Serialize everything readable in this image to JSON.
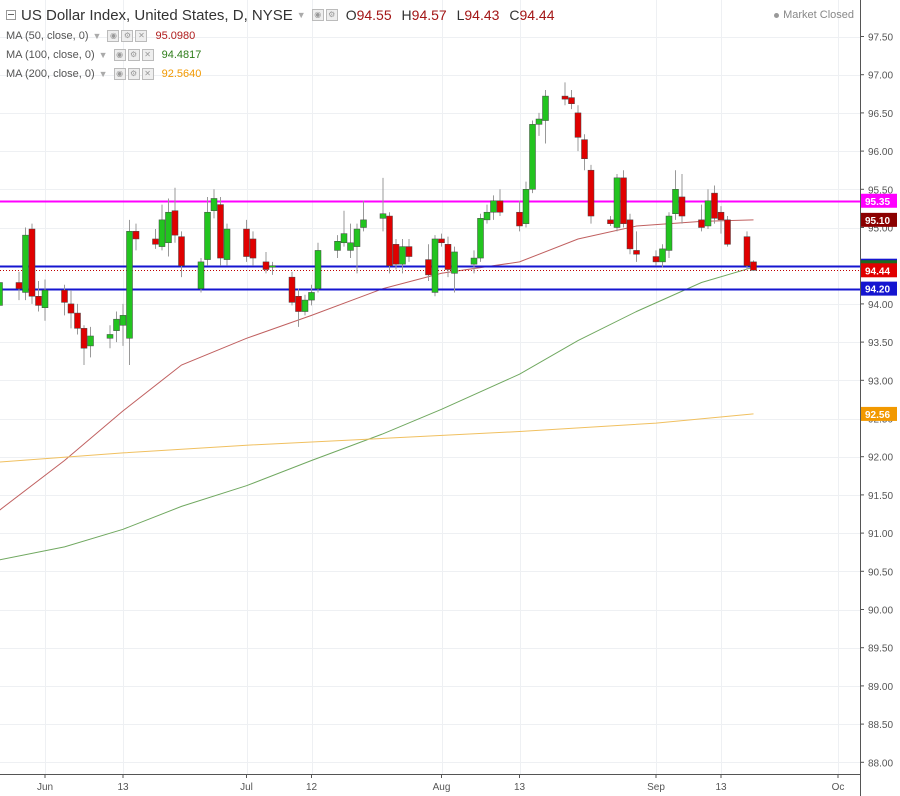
{
  "header": {
    "title": "US Dollar Index, United States, D, NYSE",
    "ohlc": [
      {
        "k": "O",
        "v": "94.55"
      },
      {
        "k": "H",
        "v": "94.57"
      },
      {
        "k": "L",
        "v": "94.43"
      },
      {
        "k": "C",
        "v": "94.44"
      }
    ],
    "status": "Market Closed"
  },
  "indicators": [
    {
      "label": "MA (50, close, 0)",
      "value": "95.0980",
      "color": "#b01c1c"
    },
    {
      "label": "MA (100, close, 0)",
      "value": "94.4817",
      "color": "#2e7d1a"
    },
    {
      "label": "MA (200, close, 0)",
      "value": "92.5640",
      "color": "#f29900"
    }
  ],
  "colors": {
    "up": "#22c41f",
    "down": "#e00000",
    "wick": "#999999",
    "hline_magenta": "#ff00ff",
    "hline_blue": "#1515d0",
    "ma50": "#c06060",
    "ma100": "#70a860",
    "ma200": "#f0c060"
  },
  "chart_data": {
    "type": "candlestick",
    "title": "US Dollar Index, United States, D, NYSE",
    "ylim": [
      87.9,
      97.7
    ],
    "y_ticks": [
      "97.50",
      "97.00",
      "96.50",
      "96.00",
      "95.50",
      "95.00",
      "94.50",
      "94.00",
      "93.50",
      "93.00",
      "92.50",
      "92.00",
      "91.50",
      "91.00",
      "90.50",
      "90.00",
      "89.50",
      "89.00",
      "88.50",
      "88.00"
    ],
    "x_ticks": [
      "Jun",
      "13",
      "Jul",
      "12",
      "Aug",
      "13",
      "Sep",
      "13",
      "Oc"
    ],
    "x_tick_dates": [
      "2018-06-01",
      "2018-06-13",
      "2018-07-02",
      "2018-07-12",
      "2018-08-01",
      "2018-08-13",
      "2018-09-03",
      "2018-09-13",
      "2018-10-01"
    ],
    "candles": [
      {
        "d": "2018-05-25",
        "o": 93.98,
        "h": 94.35,
        "l": 93.85,
        "c": 94.28
      },
      {
        "d": "2018-05-28",
        "o": 94.28,
        "h": 94.42,
        "l": 94.05,
        "c": 94.2
      },
      {
        "d": "2018-05-29",
        "o": 94.15,
        "h": 95.0,
        "l": 94.05,
        "c": 94.9
      },
      {
        "d": "2018-05-30",
        "o": 94.98,
        "h": 95.05,
        "l": 94.0,
        "c": 94.1
      },
      {
        "d": "2018-05-31",
        "o": 94.1,
        "h": 94.3,
        "l": 93.9,
        "c": 93.98
      },
      {
        "d": "2018-06-01",
        "o": 93.95,
        "h": 94.32,
        "l": 93.78,
        "c": 94.18
      },
      {
        "d": "2018-06-04",
        "o": 94.18,
        "h": 94.25,
        "l": 93.85,
        "c": 94.02
      },
      {
        "d": "2018-06-05",
        "o": 94.0,
        "h": 94.18,
        "l": 93.68,
        "c": 93.88
      },
      {
        "d": "2018-06-06",
        "o": 93.88,
        "h": 94.0,
        "l": 93.6,
        "c": 93.68
      },
      {
        "d": "2018-06-07",
        "o": 93.68,
        "h": 93.72,
        "l": 93.2,
        "c": 93.42
      },
      {
        "d": "2018-06-08",
        "o": 93.45,
        "h": 93.7,
        "l": 93.3,
        "c": 93.58
      },
      {
        "d": "2018-06-11",
        "o": 93.55,
        "h": 93.72,
        "l": 93.42,
        "c": 93.6
      },
      {
        "d": "2018-06-12",
        "o": 93.65,
        "h": 93.9,
        "l": 93.5,
        "c": 93.8
      },
      {
        "d": "2018-06-13",
        "o": 93.72,
        "h": 94.0,
        "l": 93.45,
        "c": 93.85
      },
      {
        "d": "2018-06-14",
        "o": 93.55,
        "h": 95.1,
        "l": 93.2,
        "c": 94.95
      },
      {
        "d": "2018-06-15",
        "o": 94.95,
        "h": 95.05,
        "l": 94.7,
        "c": 94.85
      },
      {
        "d": "2018-06-18",
        "o": 94.85,
        "h": 94.98,
        "l": 94.72,
        "c": 94.78
      },
      {
        "d": "2018-06-19",
        "o": 94.75,
        "h": 95.3,
        "l": 94.7,
        "c": 95.1
      },
      {
        "d": "2018-06-20",
        "o": 94.8,
        "h": 95.38,
        "l": 94.62,
        "c": 95.2
      },
      {
        "d": "2018-06-21",
        "o": 95.22,
        "h": 95.52,
        "l": 94.8,
        "c": 94.9
      },
      {
        "d": "2018-06-22",
        "o": 94.88,
        "h": 94.95,
        "l": 94.35,
        "c": 94.5
      },
      {
        "d": "2018-06-25",
        "o": 94.2,
        "h": 94.6,
        "l": 94.15,
        "c": 94.55
      },
      {
        "d": "2018-06-26",
        "o": 94.58,
        "h": 95.4,
        "l": 94.5,
        "c": 95.2
      },
      {
        "d": "2018-06-27",
        "o": 95.22,
        "h": 95.5,
        "l": 95.12,
        "c": 95.38
      },
      {
        "d": "2018-06-28",
        "o": 95.3,
        "h": 95.4,
        "l": 94.5,
        "c": 94.6
      },
      {
        "d": "2018-06-29",
        "o": 94.58,
        "h": 95.05,
        "l": 94.5,
        "c": 94.98
      },
      {
        "d": "2018-07-02",
        "o": 94.98,
        "h": 95.1,
        "l": 94.55,
        "c": 94.62
      },
      {
        "d": "2018-07-03",
        "o": 94.85,
        "h": 94.95,
        "l": 94.5,
        "c": 94.6
      },
      {
        "d": "2018-07-05",
        "o": 94.55,
        "h": 94.68,
        "l": 94.4,
        "c": 94.45
      },
      {
        "d": "2018-07-06",
        "o": 94.48,
        "h": 94.55,
        "l": 94.38,
        "c": 94.5
      },
      {
        "d": "2018-07-09",
        "o": 94.35,
        "h": 94.42,
        "l": 93.98,
        "c": 94.02
      },
      {
        "d": "2018-07-10",
        "o": 94.1,
        "h": 94.2,
        "l": 93.7,
        "c": 93.9
      },
      {
        "d": "2018-07-11",
        "o": 93.9,
        "h": 94.12,
        "l": 93.85,
        "c": 94.05
      },
      {
        "d": "2018-07-12",
        "o": 94.05,
        "h": 94.25,
        "l": 93.98,
        "c": 94.15
      },
      {
        "d": "2018-07-13",
        "o": 94.2,
        "h": 94.8,
        "l": 94.15,
        "c": 94.7
      },
      {
        "d": "2018-07-16",
        "o": 94.7,
        "h": 94.9,
        "l": 94.6,
        "c": 94.82
      },
      {
        "d": "2018-07-17",
        "o": 94.8,
        "h": 95.22,
        "l": 94.75,
        "c": 94.92
      },
      {
        "d": "2018-07-18",
        "o": 94.7,
        "h": 95.05,
        "l": 94.6,
        "c": 94.8
      },
      {
        "d": "2018-07-19",
        "o": 94.75,
        "h": 95.05,
        "l": 94.4,
        "c": 94.98
      },
      {
        "d": "2018-07-20",
        "o": 95.0,
        "h": 95.35,
        "l": 94.95,
        "c": 95.1
      },
      {
        "d": "2018-07-23",
        "o": 95.12,
        "h": 95.65,
        "l": 94.95,
        "c": 95.18
      },
      {
        "d": "2018-07-24",
        "o": 95.15,
        "h": 95.2,
        "l": 94.4,
        "c": 94.5
      },
      {
        "d": "2018-07-25",
        "o": 94.78,
        "h": 94.85,
        "l": 94.45,
        "c": 94.52
      },
      {
        "d": "2018-07-26",
        "o": 94.52,
        "h": 94.85,
        "l": 94.4,
        "c": 94.75
      },
      {
        "d": "2018-07-27",
        "o": 94.75,
        "h": 94.85,
        "l": 94.55,
        "c": 94.62
      },
      {
        "d": "2018-07-30",
        "o": 94.58,
        "h": 94.78,
        "l": 94.3,
        "c": 94.38
      },
      {
        "d": "2018-07-31",
        "o": 94.15,
        "h": 94.9,
        "l": 94.1,
        "c": 94.85
      },
      {
        "d": "2018-08-01",
        "o": 94.85,
        "h": 94.92,
        "l": 94.75,
        "c": 94.8
      },
      {
        "d": "2018-08-02",
        "o": 94.78,
        "h": 94.88,
        "l": 94.35,
        "c": 94.45
      },
      {
        "d": "2018-08-03",
        "o": 94.4,
        "h": 94.75,
        "l": 94.15,
        "c": 94.68
      },
      {
        "d": "2018-08-06",
        "o": 94.52,
        "h": 94.7,
        "l": 94.4,
        "c": 94.6
      },
      {
        "d": "2018-08-07",
        "o": 94.6,
        "h": 95.18,
        "l": 94.55,
        "c": 95.12
      },
      {
        "d": "2018-08-08",
        "o": 95.1,
        "h": 95.3,
        "l": 95.05,
        "c": 95.2
      },
      {
        "d": "2018-08-09",
        "o": 95.2,
        "h": 95.42,
        "l": 95.1,
        "c": 95.35
      },
      {
        "d": "2018-08-10",
        "o": 95.35,
        "h": 95.5,
        "l": 95.15,
        "c": 95.2
      },
      {
        "d": "2018-08-13",
        "o": 95.2,
        "h": 95.35,
        "l": 94.95,
        "c": 95.02
      },
      {
        "d": "2018-08-14",
        "o": 95.05,
        "h": 95.6,
        "l": 95.0,
        "c": 95.5
      },
      {
        "d": "2018-08-15",
        "o": 95.5,
        "h": 96.4,
        "l": 95.45,
        "c": 96.35
      },
      {
        "d": "2018-08-16",
        "o": 96.35,
        "h": 96.5,
        "l": 96.2,
        "c": 96.42
      },
      {
        "d": "2018-08-17",
        "o": 96.4,
        "h": 96.8,
        "l": 96.1,
        "c": 96.72
      },
      {
        "d": "2018-08-20",
        "o": 96.72,
        "h": 96.9,
        "l": 96.6,
        "c": 96.68
      },
      {
        "d": "2018-08-21",
        "o": 96.7,
        "h": 96.8,
        "l": 96.55,
        "c": 96.62
      },
      {
        "d": "2018-08-22",
        "o": 96.5,
        "h": 96.6,
        "l": 96.0,
        "c": 96.18
      },
      {
        "d": "2018-08-23",
        "o": 96.15,
        "h": 96.22,
        "l": 95.75,
        "c": 95.9
      },
      {
        "d": "2018-08-24",
        "o": 95.75,
        "h": 95.82,
        "l": 95.05,
        "c": 95.15
      },
      {
        "d": "2018-08-27",
        "o": 95.1,
        "h": 95.15,
        "l": 95.02,
        "c": 95.05
      },
      {
        "d": "2018-08-28",
        "o": 95.0,
        "h": 95.7,
        "l": 94.95,
        "c": 95.65
      },
      {
        "d": "2018-08-29",
        "o": 95.65,
        "h": 95.75,
        "l": 95.0,
        "c": 95.05
      },
      {
        "d": "2018-08-30",
        "o": 95.1,
        "h": 95.18,
        "l": 94.65,
        "c": 94.72
      },
      {
        "d": "2018-08-31",
        "o": 94.7,
        "h": 94.95,
        "l": 94.55,
        "c": 94.65
      },
      {
        "d": "2018-09-03",
        "o": 94.62,
        "h": 94.7,
        "l": 94.5,
        "c": 94.55
      },
      {
        "d": "2018-09-04",
        "o": 94.55,
        "h": 94.78,
        "l": 94.48,
        "c": 94.72
      },
      {
        "d": "2018-09-05",
        "o": 94.7,
        "h": 95.2,
        "l": 94.6,
        "c": 95.15
      },
      {
        "d": "2018-09-06",
        "o": 95.18,
        "h": 95.75,
        "l": 95.1,
        "c": 95.5
      },
      {
        "d": "2018-09-07",
        "o": 95.4,
        "h": 95.7,
        "l": 95.05,
        "c": 95.15
      },
      {
        "d": "2018-09-10",
        "o": 95.1,
        "h": 95.3,
        "l": 94.95,
        "c": 95.0
      },
      {
        "d": "2018-09-11",
        "o": 95.02,
        "h": 95.5,
        "l": 94.98,
        "c": 95.35
      },
      {
        "d": "2018-09-12",
        "o": 95.45,
        "h": 95.55,
        "l": 95.05,
        "c": 95.12
      },
      {
        "d": "2018-09-13",
        "o": 95.2,
        "h": 95.28,
        "l": 94.92,
        "c": 95.1
      },
      {
        "d": "2018-09-14",
        "o": 95.1,
        "h": 95.15,
        "l": 94.75,
        "c": 94.78
      },
      {
        "d": "2018-09-17",
        "o": 94.88,
        "h": 94.95,
        "l": 94.45,
        "c": 94.5
      },
      {
        "d": "2018-09-18",
        "o": 94.55,
        "h": 94.57,
        "l": 94.43,
        "c": 94.44
      }
    ],
    "moving_averages": [
      {
        "name": "MA (50, close, 0)",
        "color": "#c06060",
        "points": [
          [
            "2018-05-25",
            91.3
          ],
          [
            "2018-06-04",
            91.95
          ],
          [
            "2018-06-13",
            92.6
          ],
          [
            "2018-06-22",
            93.2
          ],
          [
            "2018-07-02",
            93.55
          ],
          [
            "2018-07-12",
            93.85
          ],
          [
            "2018-07-23",
            94.2
          ],
          [
            "2018-08-01",
            94.4
          ],
          [
            "2018-08-13",
            94.55
          ],
          [
            "2018-08-22",
            94.85
          ],
          [
            "2018-08-31",
            95.02
          ],
          [
            "2018-09-10",
            95.08
          ],
          [
            "2018-09-18",
            95.1
          ]
        ]
      },
      {
        "name": "MA (100, close, 0)",
        "color": "#70a860",
        "points": [
          [
            "2018-05-25",
            90.65
          ],
          [
            "2018-06-04",
            90.82
          ],
          [
            "2018-06-13",
            91.05
          ],
          [
            "2018-06-22",
            91.35
          ],
          [
            "2018-07-02",
            91.62
          ],
          [
            "2018-07-12",
            91.95
          ],
          [
            "2018-07-23",
            92.3
          ],
          [
            "2018-08-01",
            92.62
          ],
          [
            "2018-08-13",
            93.08
          ],
          [
            "2018-08-22",
            93.52
          ],
          [
            "2018-08-31",
            93.9
          ],
          [
            "2018-09-10",
            94.28
          ],
          [
            "2018-09-18",
            94.48
          ]
        ]
      },
      {
        "name": "MA (200, close, 0)",
        "color": "#f0c060",
        "points": [
          [
            "2018-05-25",
            91.93
          ],
          [
            "2018-06-13",
            92.05
          ],
          [
            "2018-07-02",
            92.15
          ],
          [
            "2018-07-23",
            92.24
          ],
          [
            "2018-08-13",
            92.33
          ],
          [
            "2018-09-03",
            92.44
          ],
          [
            "2018-09-18",
            92.56
          ]
        ]
      }
    ],
    "horizontal_lines": [
      {
        "value": 95.35,
        "color": "#ff00ff",
        "label": "95.35"
      },
      {
        "value": 94.5,
        "color": "#1515d0",
        "label": "94.50"
      },
      {
        "value": 94.2,
        "color": "#1515d0",
        "label": "94.20"
      }
    ],
    "price_badges": [
      {
        "value": 95.1,
        "label": "95.10",
        "color": "#8b0000"
      },
      {
        "value": 94.48,
        "label": "94.48",
        "color": "#1e6b1e"
      },
      {
        "value": 94.44,
        "label": "94.44",
        "color": "#e00000"
      },
      {
        "value": 92.56,
        "label": "92.56",
        "color": "#f29900"
      }
    ],
    "current_price": 94.44
  }
}
